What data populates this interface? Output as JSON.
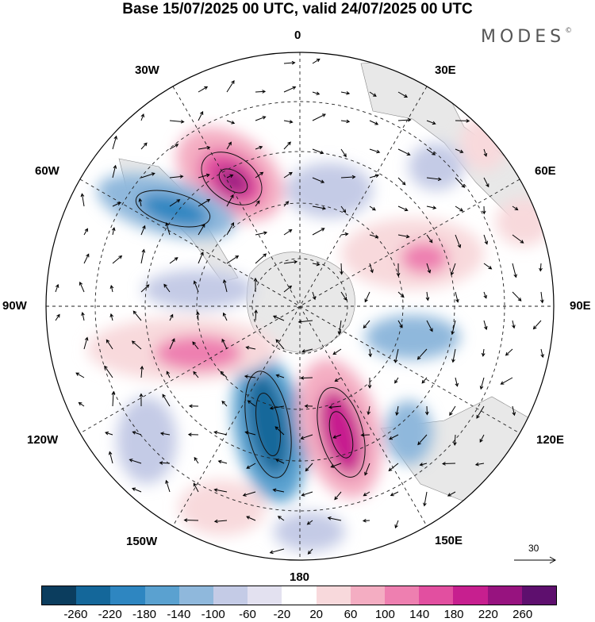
{
  "title": "Base 15/07/2025 00 UTC, valid 24/07/2025 00 UTC",
  "brand": "MODES",
  "brand_mark": "©",
  "longitude_labels": {
    "lon_0": "0",
    "lon_30e": "30E",
    "lon_60e": "60E",
    "lon_90e": "90E",
    "lon_120e": "120E",
    "lon_150e": "150E",
    "lon_180": "180",
    "lon_150w": "150W",
    "lon_120w": "120W",
    "lon_90w": "90W",
    "lon_60w": "60W",
    "lon_30w": "30W"
  },
  "reference_vector": "30",
  "colorbar": {
    "colors": [
      "#0b3d5e",
      "#14679a",
      "#2e86c1",
      "#5aa1d0",
      "#8fb8dc",
      "#c4cbe6",
      "#e3e1f0",
      "#ffffff",
      "#f8d9dc",
      "#f4adc2",
      "#ee7fb0",
      "#e24fa0",
      "#c71f8f",
      "#97137f",
      "#5e0f6e"
    ],
    "tick_labels": [
      "-260",
      "-220",
      "-180",
      "-140",
      "-100",
      "-60",
      "-20",
      "20",
      "60",
      "100",
      "140",
      "180",
      "220",
      "260"
    ]
  },
  "anomaly_features": [
    {
      "sign": "positive",
      "level": 220,
      "location": "between 30W and 60W, outer ring"
    },
    {
      "sign": "negative",
      "level": -180,
      "location": "near 60W"
    },
    {
      "sign": "negative",
      "level": -220,
      "location": "near 180, west side"
    },
    {
      "sign": "positive",
      "level": 220,
      "location": "near 160E"
    },
    {
      "sign": "positive",
      "level": 140,
      "location": "near 100W"
    },
    {
      "sign": "negative",
      "level": -100,
      "location": "near 110E"
    },
    {
      "sign": "positive",
      "level": 100,
      "location": "near 70E"
    },
    {
      "sign": "negative",
      "level": -100,
      "location": "near 0, inner ring"
    }
  ]
}
